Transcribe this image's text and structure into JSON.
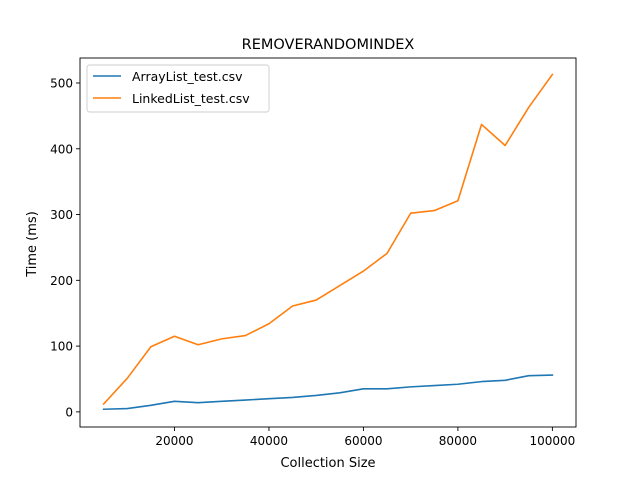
{
  "chart_data": {
    "type": "line",
    "title": "REMOVERANDOMINDEX",
    "xlabel": "Collection Size",
    "ylabel": "Time (ms)",
    "xlim": [
      0,
      105000
    ],
    "ylim": [
      -23,
      538
    ],
    "xticks": [
      20000,
      40000,
      60000,
      80000,
      100000
    ],
    "xtick_labels": [
      "20000",
      "40000",
      "60000",
      "80000",
      "100000"
    ],
    "yticks": [
      0,
      100,
      200,
      300,
      400,
      500
    ],
    "ytick_labels": [
      "0",
      "100",
      "200",
      "300",
      "400",
      "500"
    ],
    "grid": false,
    "legend_position": "top-left",
    "x": [
      5000,
      10000,
      15000,
      20000,
      25000,
      30000,
      35000,
      40000,
      45000,
      50000,
      55000,
      60000,
      65000,
      70000,
      75000,
      80000,
      85000,
      90000,
      95000,
      100000
    ],
    "series": [
      {
        "name": "ArrayList_test.csv",
        "color": "#1f77b4",
        "values": [
          4,
          5,
          10,
          16,
          14,
          16,
          18,
          20,
          22,
          25,
          29,
          35,
          35,
          38,
          40,
          42,
          46,
          48,
          55,
          56
        ]
      },
      {
        "name": "LinkedList_test.csv",
        "color": "#ff7f0e",
        "values": [
          12,
          51,
          99,
          115,
          102,
          111,
          116,
          134,
          161,
          170,
          192,
          214,
          241,
          302,
          306,
          321,
          437,
          405,
          463,
          513
        ]
      }
    ]
  }
}
